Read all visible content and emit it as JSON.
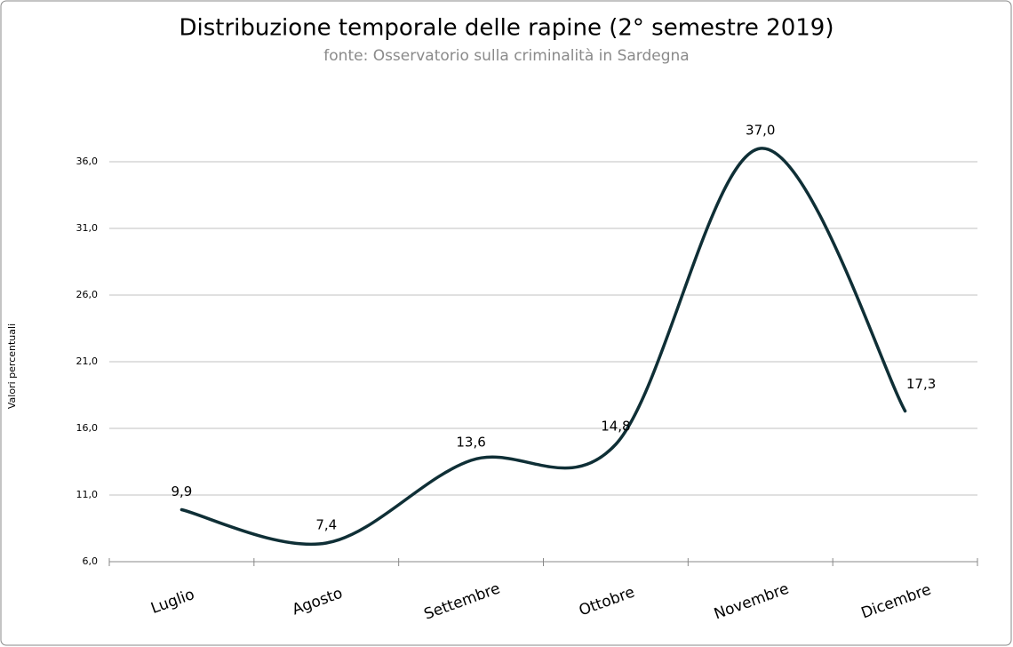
{
  "chart_data": {
    "type": "line",
    "title": "Distribuzione temporale delle rapine  (2° semestre 2019)",
    "subtitle": "fonte: Osservatorio sulla criminalità in Sardegna",
    "y_label": "Valori percentuali",
    "categories": [
      "Luglio",
      "Agosto",
      "Settembre",
      "Ottobre",
      "Novembre",
      "Dicembre"
    ],
    "values": [
      9.9,
      7.4,
      13.6,
      14.8,
      37.0,
      17.3
    ],
    "value_labels": [
      "9,9",
      "7,4",
      "13,6",
      "14,8",
      "37,0",
      "17,3"
    ],
    "color": "#0f2f36",
    "smooth": true,
    "ylim": [
      6,
      39
    ],
    "yticks": [
      {
        "value": 6,
        "label": "6,0"
      },
      {
        "value": 11,
        "label": "11,0"
      },
      {
        "value": 16,
        "label": "16,0"
      },
      {
        "value": 21,
        "label": "21,0"
      },
      {
        "value": 26,
        "label": "26,0"
      },
      {
        "value": 31,
        "label": "31,0"
      },
      {
        "value": 36,
        "label": "36,0"
      }
    ],
    "grid": true
  }
}
